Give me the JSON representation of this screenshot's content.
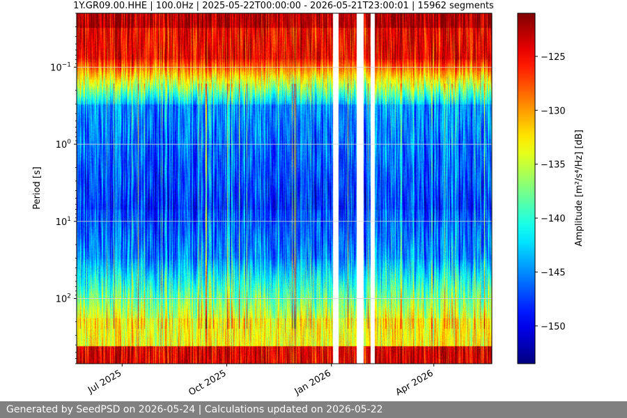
{
  "chart_data": {
    "type": "heatmap",
    "title": "1Y.GR09.00.HHE | 100.0Hz | 2025-05-22T00:00:00 - 2026-05-21T23:00:01 | 15962 segments",
    "xlabel": "",
    "ylabel": "Period [s]",
    "colorbar_label": "Amplitude [m²/s⁴/Hz] [dB]",
    "colorbar_ticks": [
      "−125",
      "−130",
      "−135",
      "−140",
      "−145",
      "−150"
    ],
    "colorbar_tick_values": [
      -125,
      -130,
      -135,
      -140,
      -145,
      -150
    ],
    "colorbar_range": [
      -153.5,
      -121
    ],
    "colormap": "jet",
    "y_scale": "log",
    "y_inverted": true,
    "y_range": [
      0.02,
      700
    ],
    "y_ticks": [
      {
        "value": 0.1,
        "base": "10",
        "exp": "−1"
      },
      {
        "value": 1,
        "base": "10",
        "exp": "0"
      },
      {
        "value": 10,
        "base": "10",
        "exp": "1"
      },
      {
        "value": 100,
        "base": "10",
        "exp": "2"
      }
    ],
    "x_range": [
      "2025-05-22",
      "2026-05-22"
    ],
    "x_ticks": [
      {
        "date": "2025-07-01",
        "label": "Jul 2025"
      },
      {
        "date": "2025-10-01",
        "label": "Oct 2025"
      },
      {
        "date": "2026-01-01",
        "label": "Jan 2026"
      },
      {
        "date": "2026-04-01",
        "label": "Apr 2026"
      }
    ],
    "gaps": [
      [
        "2026-01-02",
        "2026-01-07"
      ],
      [
        "2026-01-23",
        "2026-01-29"
      ],
      [
        "2026-02-04",
        "2026-02-08"
      ]
    ],
    "grid": true,
    "colors": {
      "nodata": "#ffffff",
      "grid": "#d9d9d9"
    }
  },
  "footer": {
    "text": "Generated by SeedPSD on 2026-05-24 | Calculations updated on 2026-05-22"
  }
}
